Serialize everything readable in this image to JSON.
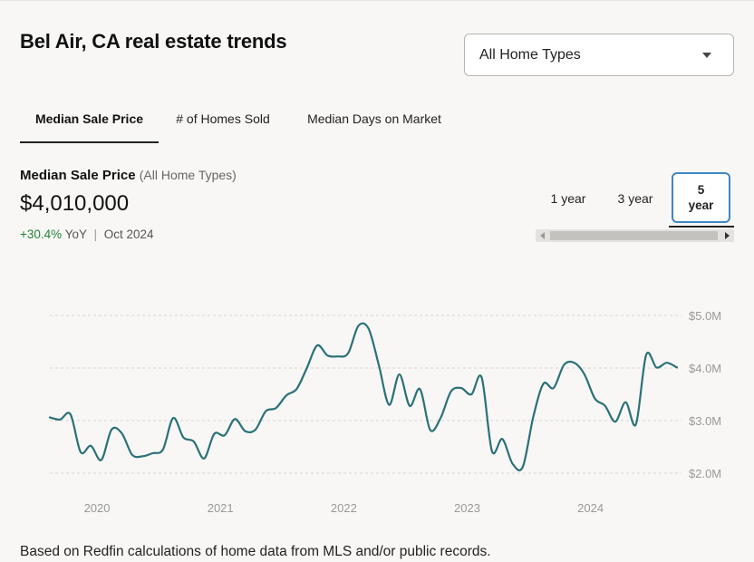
{
  "title": "Bel Air, CA real estate trends",
  "home_type_select": {
    "selected": "All Home Types"
  },
  "tabs": [
    {
      "label": "Median Sale Price",
      "active": true
    },
    {
      "label": "# of Homes Sold",
      "active": false
    },
    {
      "label": "Median Days on Market",
      "active": false
    }
  ],
  "metric": {
    "title": "Median Sale Price",
    "subtitle": "(All Home Types)",
    "value": "$4,010,000",
    "change": "+30.4%",
    "change_label": "YoY",
    "separator": "|",
    "period": "Oct 2024"
  },
  "range_buttons": [
    {
      "label": "1 year",
      "active": false
    },
    {
      "label": "3 year",
      "active": false
    },
    {
      "label": "5",
      "label2": "year",
      "active": true
    }
  ],
  "colors": {
    "line": "#2a7178",
    "positive": "#22823a",
    "active_border": "#3d86c6"
  },
  "footnote": "Based on Redfin calculations of home data from MLS and/or public records.",
  "chart_data": {
    "type": "line",
    "ylim": [
      2.0,
      5.0
    ],
    "xlim": [
      2019.75,
      2024.84
    ],
    "grid": true,
    "y_ticks": [
      {
        "value": 5.0,
        "label": "$5.0M"
      },
      {
        "value": 4.0,
        "label": "$4.0M"
      },
      {
        "value": 3.0,
        "label": "$3.0M"
      },
      {
        "value": 2.0,
        "label": "$2.0M"
      }
    ],
    "x_ticks": [
      {
        "value": 2020,
        "label": "2020"
      },
      {
        "value": 2021,
        "label": "2021"
      },
      {
        "value": 2022,
        "label": "2022"
      },
      {
        "value": 2023,
        "label": "2023"
      },
      {
        "value": 2024,
        "label": "2024"
      }
    ],
    "series": [
      {
        "x": [
          2019.75,
          2019.833,
          2019.917,
          2020.0,
          2020.083,
          2020.167,
          2020.25,
          2020.333,
          2020.417,
          2020.5,
          2020.583,
          2020.667,
          2020.75,
          2020.833,
          2020.917,
          2021.0,
          2021.083,
          2021.167,
          2021.25,
          2021.333,
          2021.417,
          2021.5,
          2021.583,
          2021.667,
          2021.75,
          2021.833,
          2021.917,
          2022.0,
          2022.083,
          2022.167,
          2022.25,
          2022.333,
          2022.417,
          2022.5,
          2022.583,
          2022.667,
          2022.75,
          2022.833,
          2022.917,
          2023.0,
          2023.083,
          2023.167,
          2023.25,
          2023.333,
          2023.417,
          2023.5,
          2023.583,
          2023.667,
          2023.75,
          2023.833,
          2023.917,
          2024.0,
          2024.083,
          2024.167,
          2024.25,
          2024.333,
          2024.417,
          2024.5,
          2024.583,
          2024.667,
          2024.75,
          2024.833
        ],
        "y": [
          3.06,
          3.02,
          3.12,
          2.4,
          2.52,
          2.25,
          2.83,
          2.76,
          2.35,
          2.32,
          2.38,
          2.45,
          3.05,
          2.68,
          2.6,
          2.28,
          2.75,
          2.72,
          3.03,
          2.8,
          2.83,
          3.18,
          3.24,
          3.48,
          3.6,
          4.0,
          4.43,
          4.24,
          4.22,
          4.28,
          4.8,
          4.75,
          4.05,
          3.3,
          3.88,
          3.28,
          3.6,
          2.82,
          3.05,
          3.55,
          3.62,
          3.5,
          3.82,
          2.42,
          2.65,
          2.18,
          2.12,
          3.06,
          3.7,
          3.62,
          4.06,
          4.1,
          3.88,
          3.42,
          3.28,
          2.98,
          3.35,
          2.93,
          4.25,
          4.01,
          4.1,
          4.01
        ]
      }
    ]
  }
}
